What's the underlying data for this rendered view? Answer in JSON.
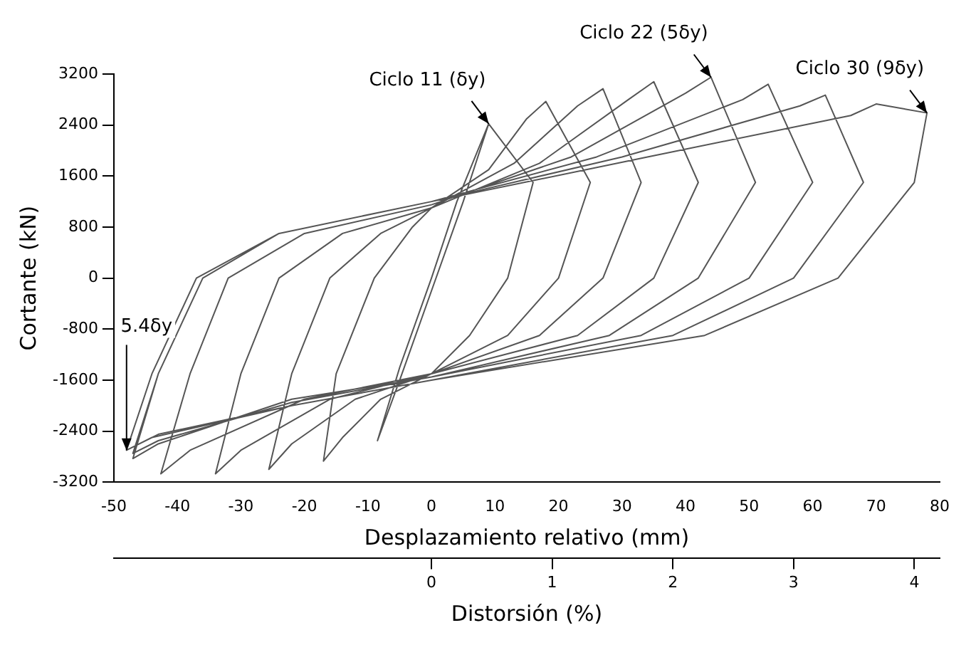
{
  "chart_data": {
    "type": "line",
    "xlabel": "Desplazamiento relativo (mm)",
    "ylabel": "Cortante (kN)",
    "x2label": "Distorsión (%)",
    "xlim": [
      -50,
      80
    ],
    "xticks": [
      -50,
      -40,
      -30,
      -20,
      -10,
      0,
      10,
      20,
      30,
      40,
      50,
      60,
      70,
      80
    ],
    "ylim": [
      -3200,
      3200
    ],
    "yticks": [
      -3200,
      -2400,
      -1600,
      -800,
      0,
      800,
      1600,
      2400,
      3200
    ],
    "x2lim": [
      -2.63,
      4.21
    ],
    "x2ticks": [
      0,
      1,
      2,
      3,
      4
    ],
    "grid": false,
    "legend": false,
    "marker": "none",
    "line_style": "solid",
    "annotations": [
      {
        "text": "Ciclo 11 (δy)",
        "x": 9,
        "y": 2420
      },
      {
        "text": "Ciclo 22 (5δy)",
        "x": 44,
        "y": 3150
      },
      {
        "text": "Ciclo 30 (9δy)",
        "x": 78,
        "y": 2590
      },
      {
        "text": "5.4δy",
        "x": -48,
        "y": -2700
      }
    ],
    "series": [
      {
        "color": "#555555",
        "x": [
          9,
          5,
          0,
          -5,
          -8.5,
          -5,
          0,
          4,
          9,
          16,
          12,
          6,
          0,
          -8,
          -14,
          -17,
          -15,
          -9,
          -3,
          0,
          9,
          15,
          18,
          25,
          20,
          12,
          0,
          -12,
          -22,
          -25.6,
          -22,
          -16,
          -8,
          0,
          13,
          23,
          27,
          33,
          27,
          17,
          0,
          -16,
          -30,
          -34,
          -30,
          -24,
          -14,
          0,
          17,
          31,
          35,
          42,
          35,
          23,
          0,
          -20,
          -38,
          -42.6,
          -38,
          -32,
          -20,
          0,
          22,
          40,
          44,
          51,
          42,
          28,
          0,
          -22,
          -43,
          -47,
          -43,
          -36,
          -24,
          0,
          26,
          49,
          53,
          60,
          50,
          33,
          0,
          -22,
          -43,
          -47,
          -43,
          -36,
          -24,
          0,
          30,
          58,
          62,
          68,
          57,
          38,
          0,
          -22,
          -44,
          -48,
          -44,
          -37,
          -24,
          0,
          34,
          66,
          70,
          78,
          76,
          64,
          43,
          0,
          -22,
          -43,
          -47
        ],
        "values": [
          2420,
          1200,
          -200,
          -1600,
          -2550,
          -1400,
          0,
          1200,
          2420,
          1500,
          0,
          -900,
          -1500,
          -1900,
          -2500,
          -2870,
          -1500,
          0,
          800,
          1100,
          1700,
          2500,
          2770,
          1500,
          0,
          -900,
          -1500,
          -1900,
          -2600,
          -3000,
          -1500,
          0,
          700,
          1100,
          1800,
          2700,
          2970,
          1500,
          0,
          -900,
          -1500,
          -1900,
          -2700,
          -3070,
          -1500,
          0,
          700,
          1100,
          1800,
          2800,
          3080,
          1500,
          0,
          -900,
          -1500,
          -1900,
          -2700,
          -3070,
          -1500,
          0,
          700,
          1150,
          1900,
          2900,
          3150,
          1500,
          0,
          -900,
          -1550,
          -1900,
          -2600,
          -2830,
          -1500,
          0,
          700,
          1200,
          1900,
          2800,
          3040,
          1500,
          0,
          -900,
          -1550,
          -1950,
          -2550,
          -2750,
          -1500,
          0,
          700,
          1200,
          1900,
          2700,
          2870,
          1500,
          0,
          -900,
          -1600,
          -2000,
          -2500,
          -2700,
          -1500,
          0,
          700,
          1200,
          1900,
          2550,
          2730,
          2590,
          1500,
          0,
          -900,
          -1600,
          -2000,
          -2450,
          -2650
        ]
      }
    ]
  }
}
